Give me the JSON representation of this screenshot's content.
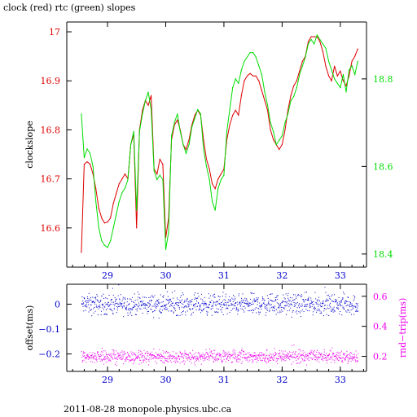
{
  "title": "clock (red) rtc (green) slopes",
  "footer": "2011-08-28  monopole.physics.ubc.ca",
  "colors": {
    "clock": "#dd0000",
    "rtc": "#00dd00",
    "offset": "#0000cc",
    "rtt": "#ee00ee",
    "axis_blue": "#0000cc",
    "axis_magenta": "#ee00ee"
  },
  "chart_data": [
    {
      "type": "line",
      "ylabel": "clockslope",
      "ylabel_right": "",
      "xlim": [
        28.3,
        33.45
      ],
      "ylim": [
        16.52,
        17.02
      ],
      "ylim_right": [
        18.37,
        18.93
      ],
      "x_ticks": [
        29,
        30,
        31,
        32,
        33
      ],
      "y_ticks": [
        16.6,
        16.7,
        16.8,
        16.9,
        17
      ],
      "y_ticks_right": [
        18.4,
        18.6,
        18.8
      ],
      "series": [
        {
          "axis": "left",
          "color": "red",
          "x": [
            28.55,
            28.6,
            28.65,
            28.7,
            28.75,
            28.8,
            28.85,
            28.9,
            28.95,
            29.0,
            29.05,
            29.1,
            29.15,
            29.2,
            29.25,
            29.3,
            29.35,
            29.4,
            29.45,
            29.5,
            29.55,
            29.6,
            29.65,
            29.7,
            29.75,
            29.8,
            29.85,
            29.9,
            29.95,
            30.0,
            30.05,
            30.1,
            30.15,
            30.2,
            30.25,
            30.3,
            30.35,
            30.4,
            30.45,
            30.5,
            30.55,
            30.6,
            30.65,
            30.7,
            30.75,
            30.8,
            30.85,
            30.9,
            30.95,
            31.0,
            31.05,
            31.1,
            31.15,
            31.2,
            31.25,
            31.3,
            31.35,
            31.4,
            31.45,
            31.5,
            31.55,
            31.6,
            31.65,
            31.7,
            31.75,
            31.8,
            31.85,
            31.9,
            31.95,
            32.0,
            32.05,
            32.1,
            32.15,
            32.2,
            32.25,
            32.3,
            32.35,
            32.4,
            32.45,
            32.5,
            32.55,
            32.6,
            32.65,
            32.7,
            32.75,
            32.8,
            32.85,
            32.9,
            32.95,
            33.0,
            33.05,
            33.1,
            33.15,
            33.2,
            33.25,
            33.3
          ],
          "y": [
            16.55,
            16.73,
            16.735,
            16.73,
            16.71,
            16.68,
            16.64,
            16.62,
            16.61,
            16.612,
            16.62,
            16.65,
            16.67,
            16.69,
            16.7,
            16.71,
            16.7,
            16.77,
            16.79,
            16.6,
            16.8,
            16.84,
            16.86,
            16.85,
            16.87,
            16.72,
            16.71,
            16.74,
            16.73,
            16.58,
            16.62,
            16.78,
            16.81,
            16.82,
            16.8,
            16.77,
            16.76,
            16.78,
            16.81,
            16.83,
            16.84,
            16.83,
            16.78,
            16.74,
            16.72,
            16.69,
            16.68,
            16.7,
            16.71,
            16.72,
            16.78,
            16.81,
            16.83,
            16.84,
            16.83,
            16.87,
            16.9,
            16.91,
            16.915,
            16.91,
            16.91,
            16.9,
            16.88,
            16.86,
            16.84,
            16.8,
            16.78,
            16.77,
            16.76,
            16.77,
            16.8,
            16.84,
            16.87,
            16.89,
            16.9,
            16.92,
            16.94,
            16.95,
            16.98,
            16.99,
            16.99,
            16.99,
            16.98,
            16.96,
            16.93,
            16.91,
            16.9,
            16.93,
            16.91,
            16.92,
            16.9,
            16.89,
            16.91,
            16.94,
            16.95,
            16.965
          ]
        },
        {
          "axis": "right",
          "color": "green",
          "x": [
            28.55,
            28.6,
            28.65,
            28.7,
            28.75,
            28.8,
            28.85,
            28.9,
            28.95,
            29.0,
            29.05,
            29.1,
            29.15,
            29.2,
            29.25,
            29.3,
            29.35,
            29.4,
            29.45,
            29.5,
            29.55,
            29.6,
            29.65,
            29.7,
            29.75,
            29.8,
            29.85,
            29.9,
            29.95,
            30.0,
            30.05,
            30.1,
            30.15,
            30.2,
            30.25,
            30.3,
            30.35,
            30.4,
            30.45,
            30.5,
            30.55,
            30.6,
            30.65,
            30.7,
            30.75,
            30.8,
            30.85,
            30.9,
            30.95,
            31.0,
            31.05,
            31.1,
            31.15,
            31.2,
            31.25,
            31.3,
            31.35,
            31.4,
            31.45,
            31.5,
            31.55,
            31.6,
            31.65,
            31.7,
            31.75,
            31.8,
            31.85,
            31.9,
            31.95,
            32.0,
            32.05,
            32.1,
            32.15,
            32.2,
            32.25,
            32.3,
            32.35,
            32.4,
            32.45,
            32.5,
            32.55,
            32.6,
            32.65,
            32.7,
            32.75,
            32.8,
            32.85,
            32.9,
            32.95,
            33.0,
            33.05,
            33.1,
            33.15,
            33.2,
            33.25,
            33.3
          ],
          "y": [
            18.72,
            18.62,
            18.64,
            18.63,
            18.6,
            18.52,
            18.46,
            18.43,
            18.42,
            18.415,
            18.43,
            18.46,
            18.49,
            18.52,
            18.54,
            18.55,
            18.57,
            18.65,
            18.68,
            18.5,
            18.68,
            18.72,
            18.75,
            18.77,
            18.73,
            18.59,
            18.57,
            18.58,
            18.57,
            18.41,
            18.45,
            18.67,
            18.7,
            18.72,
            18.68,
            18.65,
            18.63,
            18.65,
            18.69,
            18.71,
            18.73,
            18.72,
            18.64,
            18.6,
            18.57,
            18.52,
            18.5,
            18.55,
            18.57,
            18.58,
            18.68,
            18.73,
            18.78,
            18.8,
            18.79,
            18.82,
            18.84,
            18.85,
            18.86,
            18.86,
            18.85,
            18.83,
            18.81,
            18.77,
            18.74,
            18.7,
            18.68,
            18.65,
            18.66,
            18.67,
            18.7,
            18.72,
            18.75,
            18.76,
            18.78,
            18.81,
            18.83,
            18.85,
            18.88,
            18.89,
            18.88,
            18.9,
            18.89,
            18.88,
            18.87,
            18.84,
            18.82,
            18.8,
            18.79,
            18.78,
            18.81,
            18.77,
            18.82,
            18.83,
            18.81,
            18.84
          ]
        }
      ]
    },
    {
      "type": "scatter",
      "ylabel": "offset(ms)",
      "ylabel_right": "rnd−trip(ms)",
      "xlim": [
        28.3,
        33.45
      ],
      "ylim": [
        -0.27,
        0.08
      ],
      "ylim_right": [
        0.1,
        0.68
      ],
      "x_ticks": [
        29,
        30,
        31,
        32,
        33
      ],
      "y_ticks": [
        0,
        -0.1,
        -0.2
      ],
      "y_ticks_right": [
        0.2,
        0.4,
        0.6
      ],
      "series": [
        {
          "axis": "left",
          "color": "blue",
          "x_range": [
            28.55,
            33.3
          ],
          "y_mean": 0.0,
          "y_spread": 0.02
        },
        {
          "axis": "right",
          "color": "magenta",
          "x_range": [
            28.55,
            33.3
          ],
          "y_mean": 0.2,
          "y_spread": 0.02
        }
      ]
    }
  ]
}
